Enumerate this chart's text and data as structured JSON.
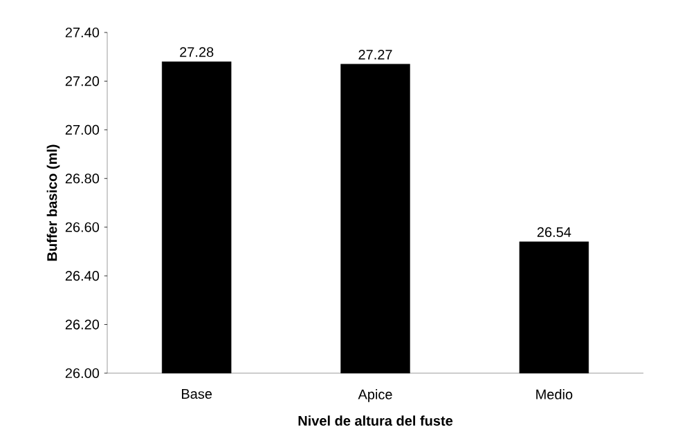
{
  "chart_data": {
    "type": "bar",
    "xlabel": "Nivel de altura del fuste",
    "ylabel": "Buffer basico (ml)",
    "categories": [
      "Base",
      "Apice",
      "Medio"
    ],
    "values": [
      27.28,
      27.27,
      26.54
    ],
    "value_labels": [
      "27.28",
      "27.27",
      "26.54"
    ],
    "color": "#000000",
    "ylim": [
      26.0,
      27.4
    ],
    "yticks": [
      {
        "value": 26.0,
        "label": "26.00"
      },
      {
        "value": 26.2,
        "label": "26.20"
      },
      {
        "value": 26.4,
        "label": "26.40"
      },
      {
        "value": 26.6,
        "label": "26.60"
      },
      {
        "value": 26.8,
        "label": "26.80"
      },
      {
        "value": 27.0,
        "label": "27.00"
      },
      {
        "value": 27.2,
        "label": "27.20"
      },
      {
        "value": 27.4,
        "label": "27.40"
      }
    ]
  }
}
